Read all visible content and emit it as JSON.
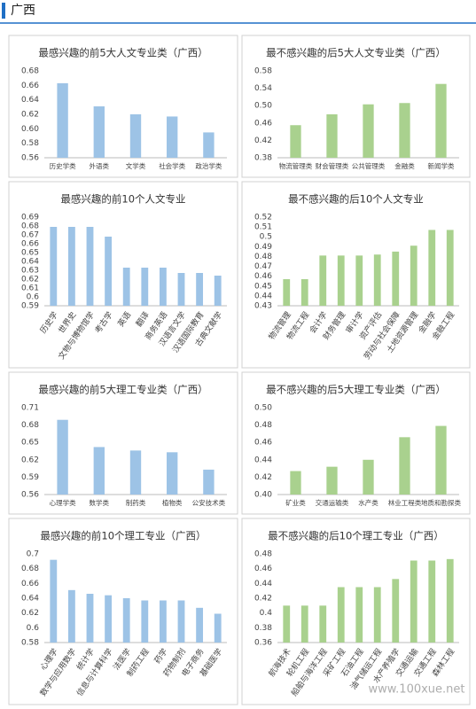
{
  "title": "广西",
  "watermark": "www.100xue.net",
  "chart_data": [
    {
      "type": "bar",
      "title": "最感兴趣的前5大人文专业类（广西）",
      "color": "#9dc3e6",
      "categories": [
        "历史学类",
        "外语类",
        "文学类",
        "社会学类",
        "政治学类"
      ],
      "values": [
        0.663,
        0.631,
        0.62,
        0.617,
        0.595
      ],
      "ylim": [
        0.56,
        0.68
      ],
      "yticks": [
        0.56,
        0.58,
        {
          "value": 0.6,
          "label": "0.60"
        },
        0.62,
        0.64,
        0.66,
        0.68
      ]
    },
    {
      "type": "bar",
      "title": "最不感兴趣的后5大人文专业类（广西）",
      "color": "#a9d18e",
      "categories": [
        "物流管理类",
        "财会管理类",
        "公共管理类",
        "金融类",
        "新闻学类"
      ],
      "values": [
        0.455,
        0.48,
        0.503,
        0.506,
        0.55
      ],
      "ylim": [
        0.38,
        0.58
      ],
      "yticks": [
        0.38,
        0.42,
        0.46,
        {
          "value": 0.5,
          "label": "0.50"
        },
        0.54,
        0.58
      ]
    },
    {
      "type": "bar",
      "title": "最感兴趣的前10个人文专业",
      "color": "#9dc3e6",
      "categories": [
        "历史学",
        "世界史",
        "文物与博物馆学",
        "考古学",
        "英语",
        "翻译",
        "商务英语",
        "汉语言文学",
        "汉语国际教育",
        "古典文献学"
      ],
      "values": [
        0.679,
        0.679,
        0.679,
        0.668,
        0.633,
        0.633,
        0.633,
        0.627,
        0.627,
        0.624
      ],
      "ylim": [
        0.59,
        0.69
      ],
      "yticks": [
        0.59,
        0.6,
        0.61,
        0.62,
        0.63,
        0.64,
        0.65,
        0.66,
        0.67,
        0.68,
        0.69
      ]
    },
    {
      "type": "bar",
      "title": "最不感兴趣的后10个人文专业",
      "color": "#a9d18e",
      "categories": [
        "物流管理",
        "物流工程",
        "会计学",
        "财务管理",
        "审计学",
        "资产评估",
        "劳动与社会保障",
        "土地资源管理",
        "金融学",
        "金融工程"
      ],
      "values": [
        0.457,
        0.457,
        0.481,
        0.481,
        0.481,
        0.482,
        0.485,
        0.491,
        0.507,
        0.507
      ],
      "ylim": [
        0.43,
        0.52
      ],
      "yticks": [
        0.43,
        0.44,
        0.45,
        0.46,
        0.47,
        0.48,
        0.49,
        0.5,
        0.51,
        0.52
      ]
    },
    {
      "type": "bar",
      "title": "最感兴趣的前5大理工专业类（广西）",
      "color": "#9dc3e6",
      "categories": [
        "心理学类",
        "数学类",
        "制药类",
        "植物类",
        "公安技术类"
      ],
      "values": [
        0.689,
        0.642,
        0.636,
        0.633,
        0.603
      ],
      "ylim": [
        0.56,
        0.71
      ],
      "yticks": [
        0.56,
        0.59,
        0.62,
        0.65,
        0.68,
        0.71
      ]
    },
    {
      "type": "bar",
      "title": "最不感兴趣的后5大理工专业类（广西）",
      "color": "#a9d18e",
      "categories": [
        "矿业类",
        "交通运输类",
        "水产类",
        "林业工程类",
        "地质和勘探类"
      ],
      "values": [
        0.427,
        0.432,
        0.44,
        0.466,
        0.479
      ],
      "ylim": [
        0.4,
        0.5
      ],
      "yticks": [
        {
          "value": 0.4,
          "label": "0.40"
        },
        0.42,
        0.44,
        0.46,
        0.48,
        {
          "value": 0.5,
          "label": "0.50"
        }
      ]
    },
    {
      "type": "bar",
      "title": "最感兴趣的前10个理工专业（广西）",
      "color": "#9dc3e6",
      "categories": [
        "心理学",
        "数学与应用数学",
        "统计学",
        "信息与计算科学",
        "法医学",
        "制药工程",
        "药学",
        "药物制剂",
        "电子商务",
        "基础医学"
      ],
      "values": [
        0.692,
        0.651,
        0.646,
        0.644,
        0.64,
        0.637,
        0.637,
        0.637,
        0.627,
        0.619
      ],
      "ylim": [
        0.58,
        0.7
      ],
      "yticks": [
        0.58,
        0.6,
        0.62,
        0.64,
        0.66,
        0.68,
        0.7
      ]
    },
    {
      "type": "bar",
      "title": "最不感兴趣的后10个理工专业（广西）",
      "color": "#a9d18e",
      "categories": [
        "航海技术",
        "轮机工程",
        "船舶与海洋工程",
        "采矿工程",
        "石油工程",
        "油气储运工程",
        "水产养殖学",
        "交通运输",
        "交通工程",
        "森林工程"
      ],
      "values": [
        0.41,
        0.41,
        0.41,
        0.435,
        0.435,
        0.435,
        0.446,
        0.471,
        0.471,
        0.473
      ],
      "ylim": [
        0.36,
        0.48
      ],
      "yticks": [
        0.36,
        0.38,
        0.4,
        0.42,
        0.44,
        0.46,
        0.48
      ]
    }
  ]
}
